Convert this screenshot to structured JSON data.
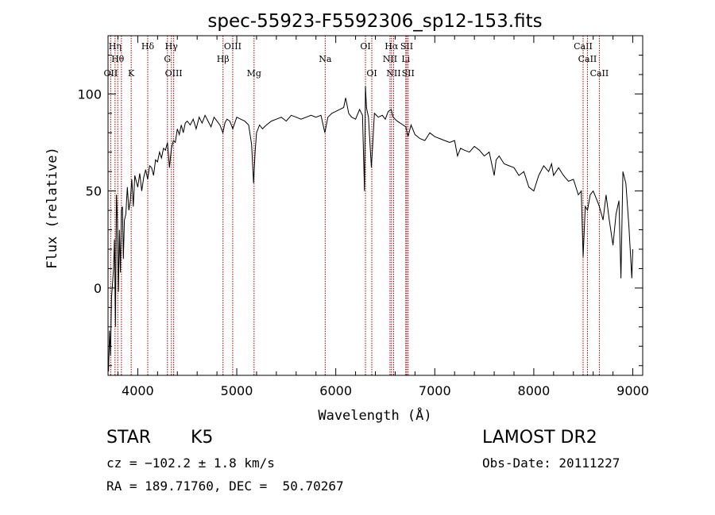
{
  "chart_data": {
    "type": "line",
    "title": "spec-55923-F5592306_sp12-153.fits",
    "xlabel": "Wavelength (Å)",
    "ylabel": "Flux (relative)",
    "xlim": [
      3700,
      9100
    ],
    "ylim": [
      -45,
      130
    ],
    "x_ticks": [
      4000,
      5000,
      6000,
      7000,
      8000,
      9000
    ],
    "y_ticks": [
      0,
      50,
      100
    ],
    "grid": false,
    "line_color": "#000000",
    "marker_color": "#a00000",
    "series": [
      {
        "x": [
          3705,
          3715,
          3725,
          3735,
          3745,
          3755,
          3765,
          3775,
          3785,
          3795,
          3805,
          3815,
          3825,
          3835,
          3845,
          3855,
          3865,
          3880,
          3895,
          3910,
          3925,
          3940,
          3955,
          3970,
          3985,
          4000,
          4020,
          4040,
          4060,
          4080,
          4100,
          4120,
          4140,
          4160,
          4180,
          4200,
          4220,
          4240,
          4260,
          4280,
          4300,
          4320,
          4340,
          4360,
          4380,
          4400,
          4420,
          4440,
          4460,
          4480,
          4500,
          4530,
          4560,
          4590,
          4620,
          4650,
          4680,
          4710,
          4740,
          4770,
          4800,
          4830,
          4860,
          4880,
          4900,
          4930,
          4960,
          5000,
          5040,
          5080,
          5120,
          5150,
          5170,
          5185,
          5200,
          5230,
          5260,
          5300,
          5350,
          5400,
          5450,
          5500,
          5550,
          5600,
          5650,
          5700,
          5750,
          5800,
          5850,
          5890,
          5920,
          5960,
          6000,
          6040,
          6080,
          6100,
          6130,
          6160,
          6200,
          6240,
          6270,
          6290,
          6300,
          6310,
          6330,
          6360,
          6390,
          6430,
          6470,
          6500,
          6530,
          6560,
          6580,
          6600,
          6620,
          6650,
          6680,
          6707,
          6730,
          6760,
          6800,
          6850,
          6900,
          6950,
          7000,
          7050,
          7100,
          7150,
          7200,
          7230,
          7260,
          7300,
          7350,
          7400,
          7450,
          7500,
          7550,
          7600,
          7620,
          7650,
          7700,
          7750,
          7800,
          7850,
          7900,
          7950,
          8000,
          8050,
          8100,
          8150,
          8180,
          8200,
          8250,
          8300,
          8350,
          8400,
          8450,
          8480,
          8498,
          8520,
          8542,
          8570,
          8600,
          8640,
          8662,
          8700,
          8730,
          8760,
          8800,
          8830,
          8860,
          8880,
          8900,
          8930,
          8960,
          8990,
          9000
        ],
        "y": [
          -43,
          -22,
          -35,
          -5,
          2,
          10,
          25,
          -20,
          48,
          35,
          -2,
          30,
          8,
          40,
          42,
          15,
          35,
          38,
          52,
          40,
          45,
          56,
          42,
          58,
          55,
          52,
          59,
          50,
          57,
          61,
          56,
          63,
          62,
          58,
          66,
          65,
          70,
          67,
          72,
          71,
          75,
          62,
          72,
          76,
          75,
          82,
          79,
          84,
          80,
          85,
          86,
          84,
          87,
          82,
          88,
          85,
          89,
          86,
          83,
          88,
          86,
          84,
          80,
          85,
          87,
          86,
          82,
          88,
          87,
          86,
          84,
          74,
          54,
          70,
          80,
          84,
          82,
          84,
          86,
          87,
          88,
          86,
          89,
          88,
          87,
          88,
          89,
          88,
          89,
          80,
          88,
          90,
          91,
          92,
          93,
          98,
          90,
          88,
          87,
          92,
          89,
          50,
          104,
          93,
          88,
          62,
          90,
          88,
          89,
          87,
          91,
          92,
          88,
          87,
          86,
          85,
          84,
          83,
          78,
          84,
          79,
          77,
          76,
          80,
          78,
          77,
          76,
          75,
          76,
          68,
          72,
          71,
          70,
          73,
          71,
          68,
          70,
          58,
          66,
          68,
          64,
          63,
          62,
          58,
          60,
          52,
          50,
          58,
          63,
          60,
          64,
          58,
          62,
          58,
          55,
          56,
          48,
          50,
          16,
          42,
          40,
          48,
          50,
          45,
          42,
          35,
          48,
          36,
          22,
          38,
          45,
          5,
          60,
          54,
          32,
          5,
          20
        ]
      }
    ],
    "line_markers": [
      {
        "wavelength": 3727,
        "label": "OII",
        "row": 3
      },
      {
        "wavelength": 3771,
        "label": "Hη",
        "row": 1
      },
      {
        "wavelength": 3798,
        "label": "Hθ",
        "row": 2
      },
      {
        "wavelength": 3835,
        "label": "",
        "row": 0
      },
      {
        "wavelength": 3934,
        "label": "K",
        "row": 3
      },
      {
        "wavelength": 4101,
        "label": "Hδ",
        "row": 1
      },
      {
        "wavelength": 4300,
        "label": "G",
        "row": 2
      },
      {
        "wavelength": 4340,
        "label": "Hγ",
        "row": 1
      },
      {
        "wavelength": 4363,
        "label": "OIII",
        "row": 3
      },
      {
        "wavelength": 4861,
        "label": "Hβ",
        "row": 2
      },
      {
        "wavelength": 4959,
        "label": "OIII",
        "row": 1
      },
      {
        "wavelength": 5175,
        "label": "Mg",
        "row": 3
      },
      {
        "wavelength": 5893,
        "label": "Na",
        "row": 2
      },
      {
        "wavelength": 6300,
        "label": "OI",
        "row": 1
      },
      {
        "wavelength": 6364,
        "label": "OI",
        "row": 3
      },
      {
        "wavelength": 6548,
        "label": "NII",
        "row": 2
      },
      {
        "wavelength": 6563,
        "label": "Hα",
        "row": 1
      },
      {
        "wavelength": 6584,
        "label": "NII",
        "row": 3
      },
      {
        "wavelength": 6707,
        "label": "Li",
        "row": 2
      },
      {
        "wavelength": 6717,
        "label": "SII",
        "row": 1
      },
      {
        "wavelength": 6731,
        "label": "SII",
        "row": 3
      },
      {
        "wavelength": 8498,
        "label": "CaII",
        "row": 1
      },
      {
        "wavelength": 8542,
        "label": "CaII",
        "row": 2
      },
      {
        "wavelength": 8662,
        "label": "CaII",
        "row": 3
      }
    ]
  },
  "footer": {
    "object_class": "STAR",
    "subclass": "K5",
    "survey": "LAMOST DR2",
    "redshift": "cz = −102.2 ± 1.8 km/s",
    "obs_date": "Obs-Date: 20111227",
    "coords": "RA = 189.71760, DEC =  50.70267"
  }
}
